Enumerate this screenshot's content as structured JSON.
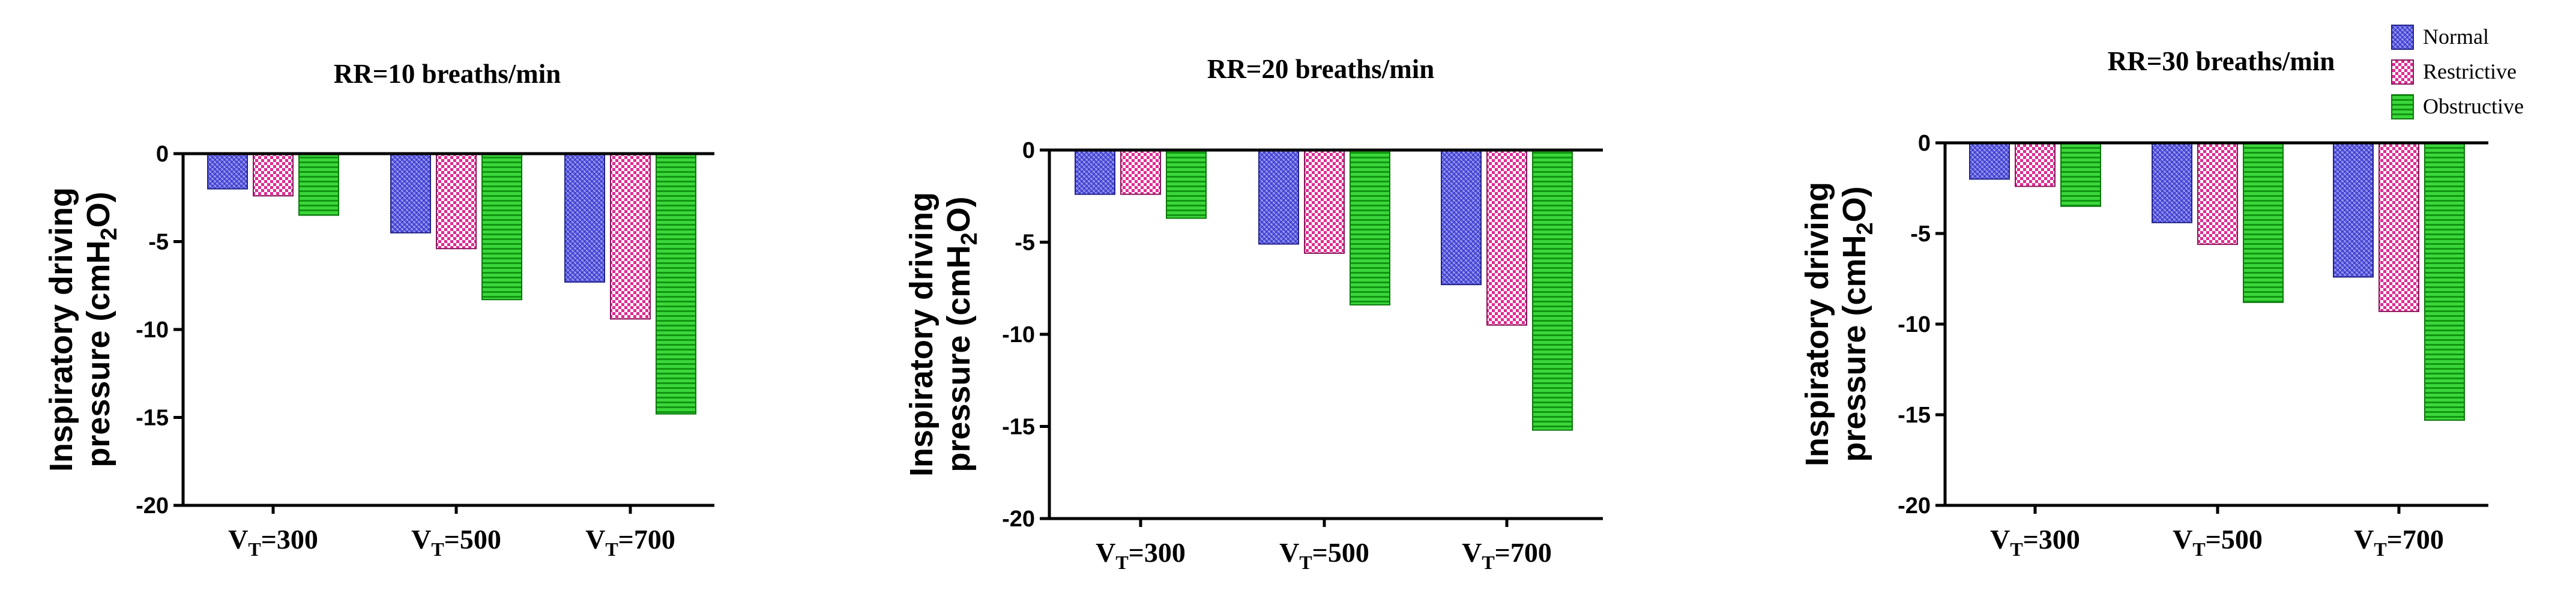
{
  "colors": {
    "Normal": "#5a5ae6",
    "Restrictive": "#e02b92",
    "Obstructive": "#1fbf1f"
  },
  "legend": {
    "position": "top-right",
    "entries": [
      "Normal",
      "Restrictive",
      "Obstructive"
    ]
  },
  "chart_data": [
    {
      "type": "bar",
      "title": "RR=10 breaths/min",
      "ylabel_line1": "Inspiratory driving",
      "ylabel_line2_pre": "pressure (cmH",
      "ylabel_line2_sub": "2",
      "ylabel_line2_post": "O)",
      "categories": [
        {
          "main": "V",
          "sub": "T",
          "rest": "=300"
        },
        {
          "main": "V",
          "sub": "T",
          "rest": "=500"
        },
        {
          "main": "V",
          "sub": "T",
          "rest": "=700"
        }
      ],
      "series": [
        {
          "name": "Normal",
          "values": [
            -2.0,
            -4.5,
            -7.3
          ]
        },
        {
          "name": "Restrictive",
          "values": [
            -2.4,
            -5.4,
            -9.4
          ]
        },
        {
          "name": "Obstructive",
          "values": [
            -3.5,
            -8.3,
            -14.8
          ]
        }
      ],
      "ylim": [
        -20,
        0
      ],
      "yticks": [
        "0",
        "-5",
        "-10",
        "-15",
        "-20"
      ],
      "grid": false
    },
    {
      "type": "bar",
      "title": "RR=20 breaths/min",
      "ylabel_line1": "Inspiratory driving",
      "ylabel_line2_pre": "pressure (cmH",
      "ylabel_line2_sub": "2",
      "ylabel_line2_post": "O)",
      "categories": [
        {
          "main": "V",
          "sub": "T",
          "rest": "=300"
        },
        {
          "main": "V",
          "sub": "T",
          "rest": "=500"
        },
        {
          "main": "V",
          "sub": "T",
          "rest": "=700"
        }
      ],
      "series": [
        {
          "name": "Normal",
          "values": [
            -2.4,
            -5.1,
            -7.3
          ]
        },
        {
          "name": "Restrictive",
          "values": [
            -2.4,
            -5.6,
            -9.5
          ]
        },
        {
          "name": "Obstructive",
          "values": [
            -3.7,
            -8.4,
            -15.2
          ]
        }
      ],
      "ylim": [
        -20,
        0
      ],
      "yticks": [
        "0",
        "-5",
        "-10",
        "-15",
        "-20"
      ],
      "grid": false
    },
    {
      "type": "bar",
      "title": "RR=30 breaths/min",
      "ylabel_line1": "Inspiratory driving",
      "ylabel_line2_pre": "pressure (cmH",
      "ylabel_line2_sub": "2",
      "ylabel_line2_post": "O)",
      "categories": [
        {
          "main": "V",
          "sub": "T",
          "rest": "=300"
        },
        {
          "main": "V",
          "sub": "T",
          "rest": "=500"
        },
        {
          "main": "V",
          "sub": "T",
          "rest": "=700"
        }
      ],
      "series": [
        {
          "name": "Normal",
          "values": [
            -2.0,
            -4.4,
            -7.4
          ]
        },
        {
          "name": "Restrictive",
          "values": [
            -2.4,
            -5.6,
            -9.3
          ]
        },
        {
          "name": "Obstructive",
          "values": [
            -3.5,
            -8.8,
            -15.3
          ]
        }
      ],
      "ylim": [
        -20,
        0
      ],
      "yticks": [
        "0",
        "-5",
        "-10",
        "-15",
        "-20"
      ],
      "grid": false
    }
  ]
}
